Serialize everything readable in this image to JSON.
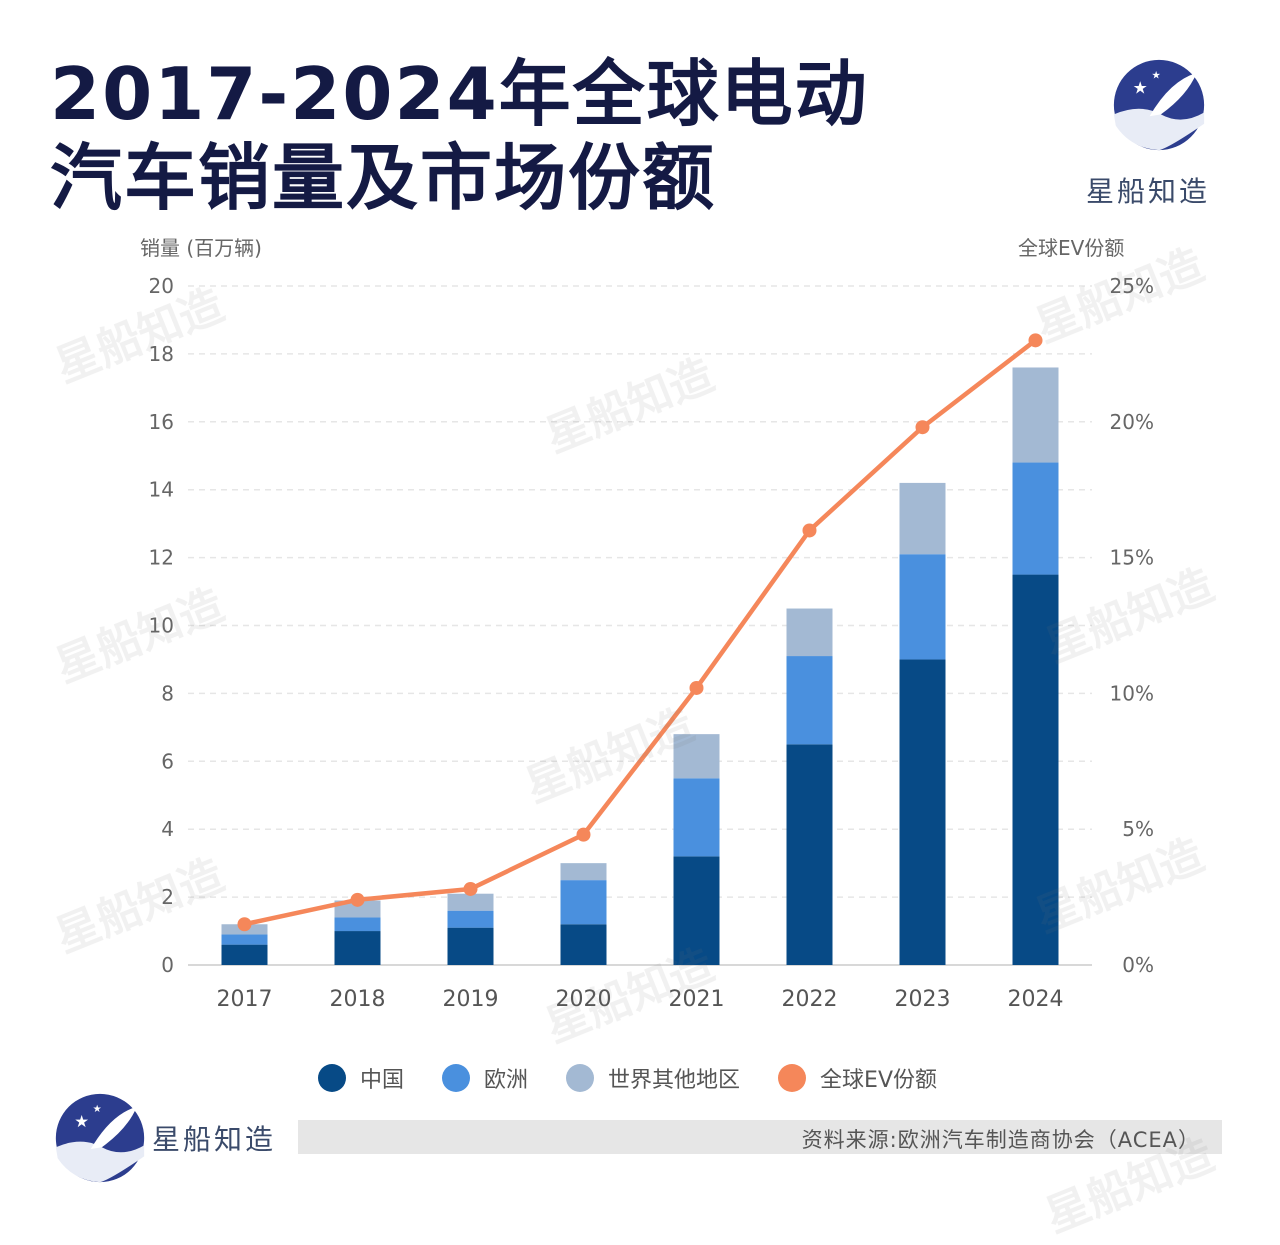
{
  "title": {
    "line1": "2017-2024年全球电动",
    "line2": "汽车销量及市场份额"
  },
  "brand": {
    "name": "星船知造",
    "watermark": "星船知造"
  },
  "source": "资料来源:欧洲汽车制造商协会（ACEA）",
  "colors": {
    "china": "#074a86",
    "europe": "#4a90de",
    "rest": "#a3b9d3",
    "share": "#f5875a",
    "title": "#141a44",
    "logo_bg": "#2c3d8e"
  },
  "chart_data": {
    "type": "bar",
    "stacked": true,
    "categories": [
      "2017",
      "2018",
      "2019",
      "2020",
      "2021",
      "2022",
      "2023",
      "2024"
    ],
    "series": [
      {
        "name": "中国",
        "values": [
          0.6,
          1.0,
          1.1,
          1.2,
          3.2,
          6.5,
          9.0,
          11.5
        ]
      },
      {
        "name": "欧洲",
        "values": [
          0.3,
          0.4,
          0.5,
          1.3,
          2.3,
          2.6,
          3.1,
          3.3
        ]
      },
      {
        "name": "世界其他地区",
        "values": [
          0.3,
          0.5,
          0.5,
          0.5,
          1.3,
          1.4,
          2.1,
          2.8
        ]
      }
    ],
    "line_series": {
      "name": "全球EV份额",
      "axis": "right",
      "values": [
        1.5,
        2.4,
        2.8,
        4.8,
        10.2,
        16.0,
        19.8,
        23.0
      ]
    },
    "ylabel": "销量 (百万辆)",
    "ylabel_right": "全球EV份额",
    "ylim": [
      0,
      20
    ],
    "yticks": [
      "0",
      "2",
      "4",
      "6",
      "8",
      "10",
      "12",
      "14",
      "16",
      "18",
      "20"
    ],
    "ylim_right": [
      0,
      25
    ],
    "yticks_right": [
      "0%",
      "5%",
      "10%",
      "15%",
      "20%",
      "25%"
    ],
    "grid": true,
    "legend_position": "bottom"
  }
}
